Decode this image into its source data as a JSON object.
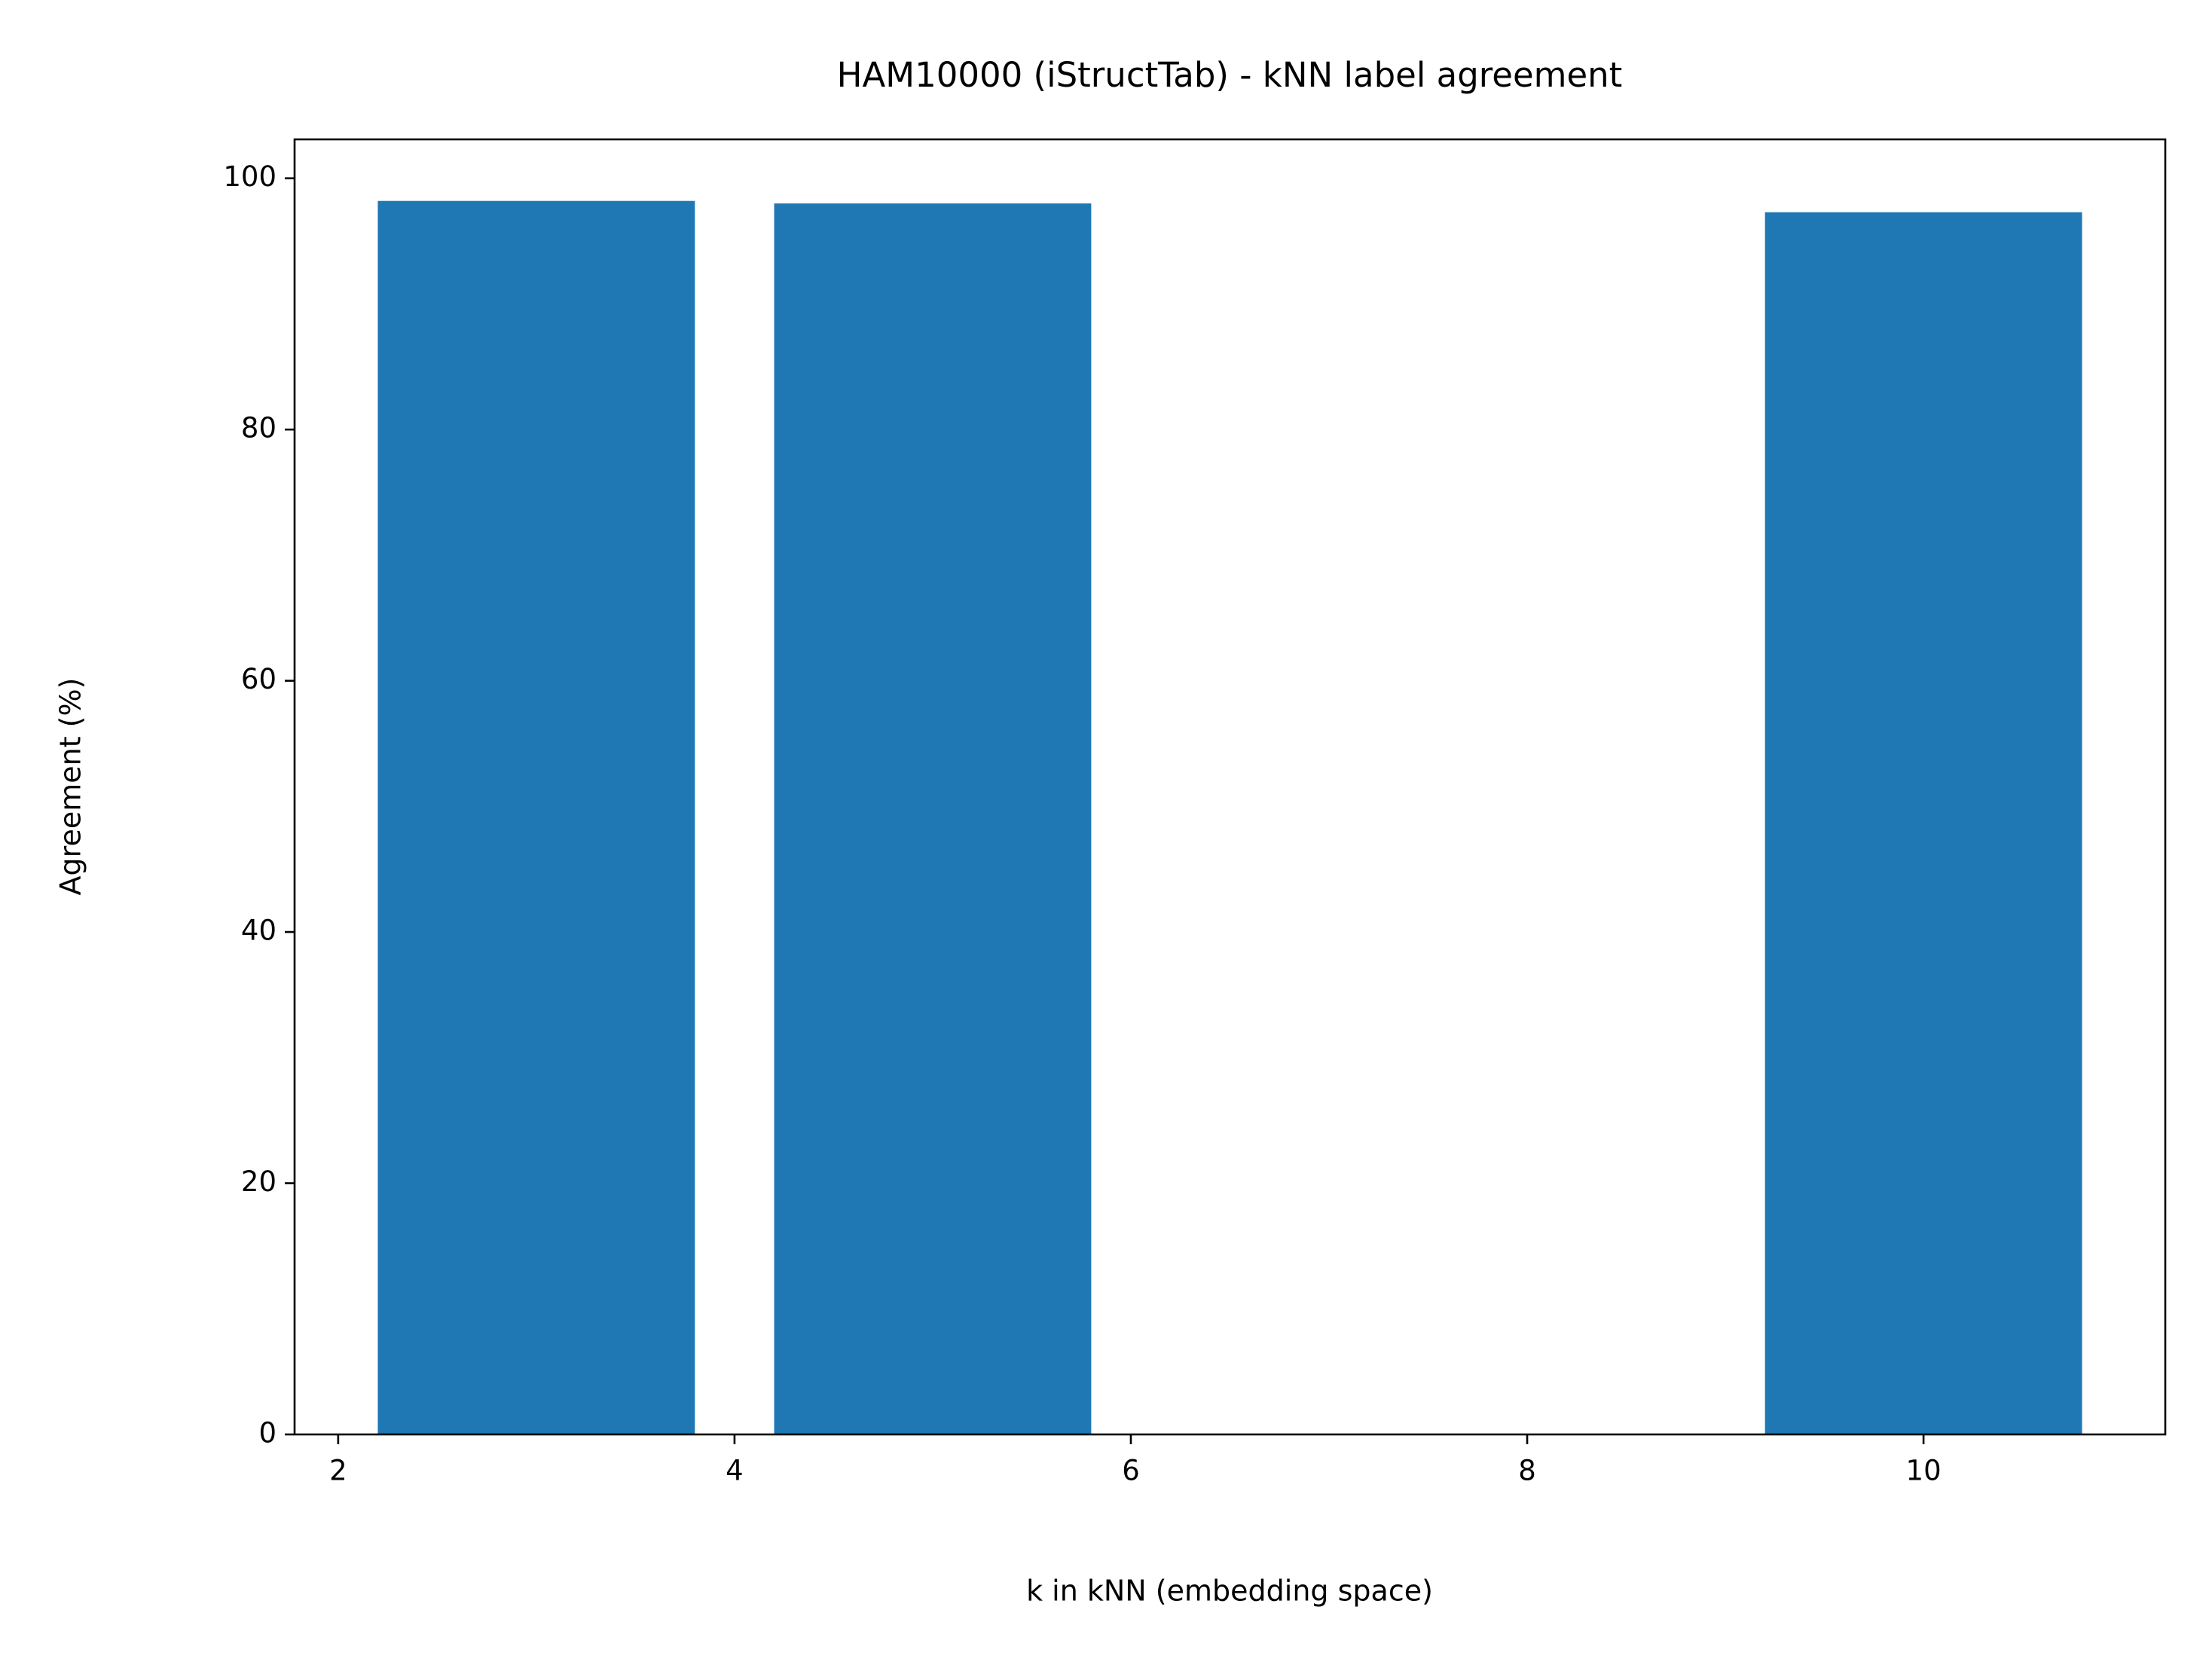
{
  "chart_data": {
    "type": "bar",
    "title": "HAM10000 (iStructTab) - kNN label agreement",
    "x_label": "k in kNN (embedding space)",
    "y_label": "Agreement (%)",
    "x": [
      3,
      5,
      10
    ],
    "values": [
      98.2,
      98.0,
      97.3
    ],
    "color": "#1f77b4",
    "xlim": [
      1.78,
      11.22
    ],
    "xticks": [
      2,
      4,
      6,
      8,
      10
    ],
    "ylim": [
      0,
      103.1
    ],
    "yticks": [
      0,
      20,
      40,
      60,
      80,
      100
    ],
    "grid": false
  }
}
